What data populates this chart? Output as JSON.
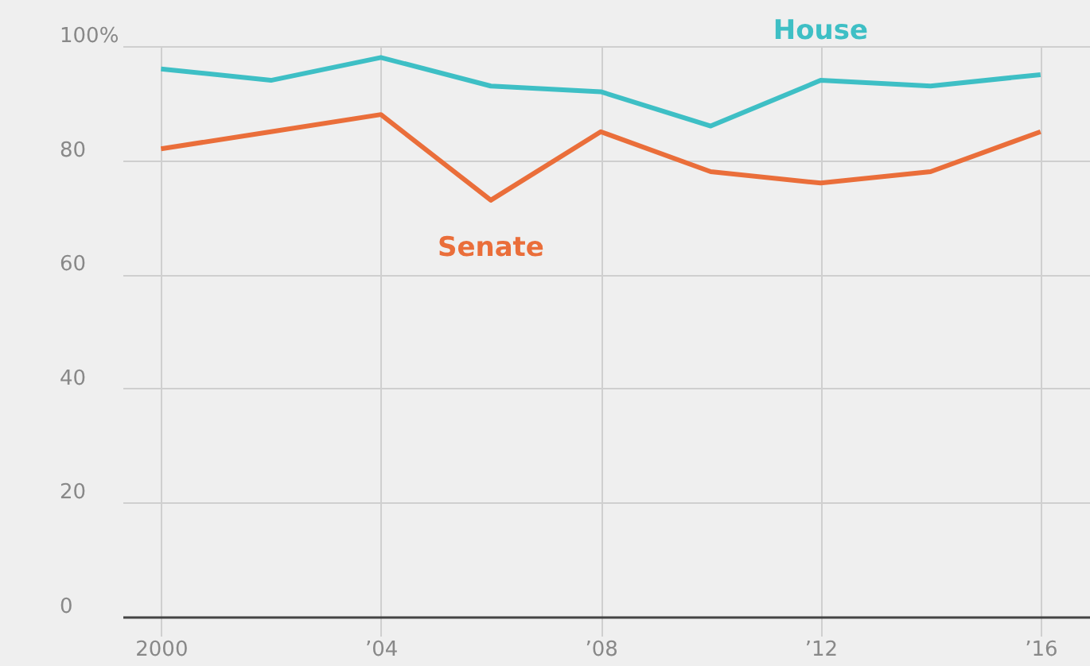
{
  "chart_data": {
    "type": "line",
    "x": [
      2000,
      2002,
      2004,
      2006,
      2008,
      2010,
      2012,
      2014,
      2016
    ],
    "series": [
      {
        "name": "House",
        "color": "#3ebfc5",
        "values": [
          96,
          94,
          98,
          93,
          92,
          86,
          94,
          93,
          95
        ]
      },
      {
        "name": "Senate",
        "color": "#ea6e3a",
        "values": [
          82,
          85,
          88,
          73,
          85,
          78,
          76,
          78,
          85
        ]
      }
    ],
    "xlim": [
      1999.3,
      2016.9
    ],
    "xticks": [
      2000,
      {
        "value": 2004,
        "label": "’04"
      },
      {
        "value": 2008,
        "label": "’08"
      },
      {
        "value": 2012,
        "label": "’12"
      },
      {
        "value": 2016,
        "label": "’16"
      }
    ],
    "ylim": [
      0,
      100
    ],
    "yticks": [
      0,
      20,
      40,
      60,
      80,
      {
        "value": 100,
        "label": "100%"
      }
    ],
    "grid": true,
    "marker": "none",
    "line_style": "solid"
  }
}
